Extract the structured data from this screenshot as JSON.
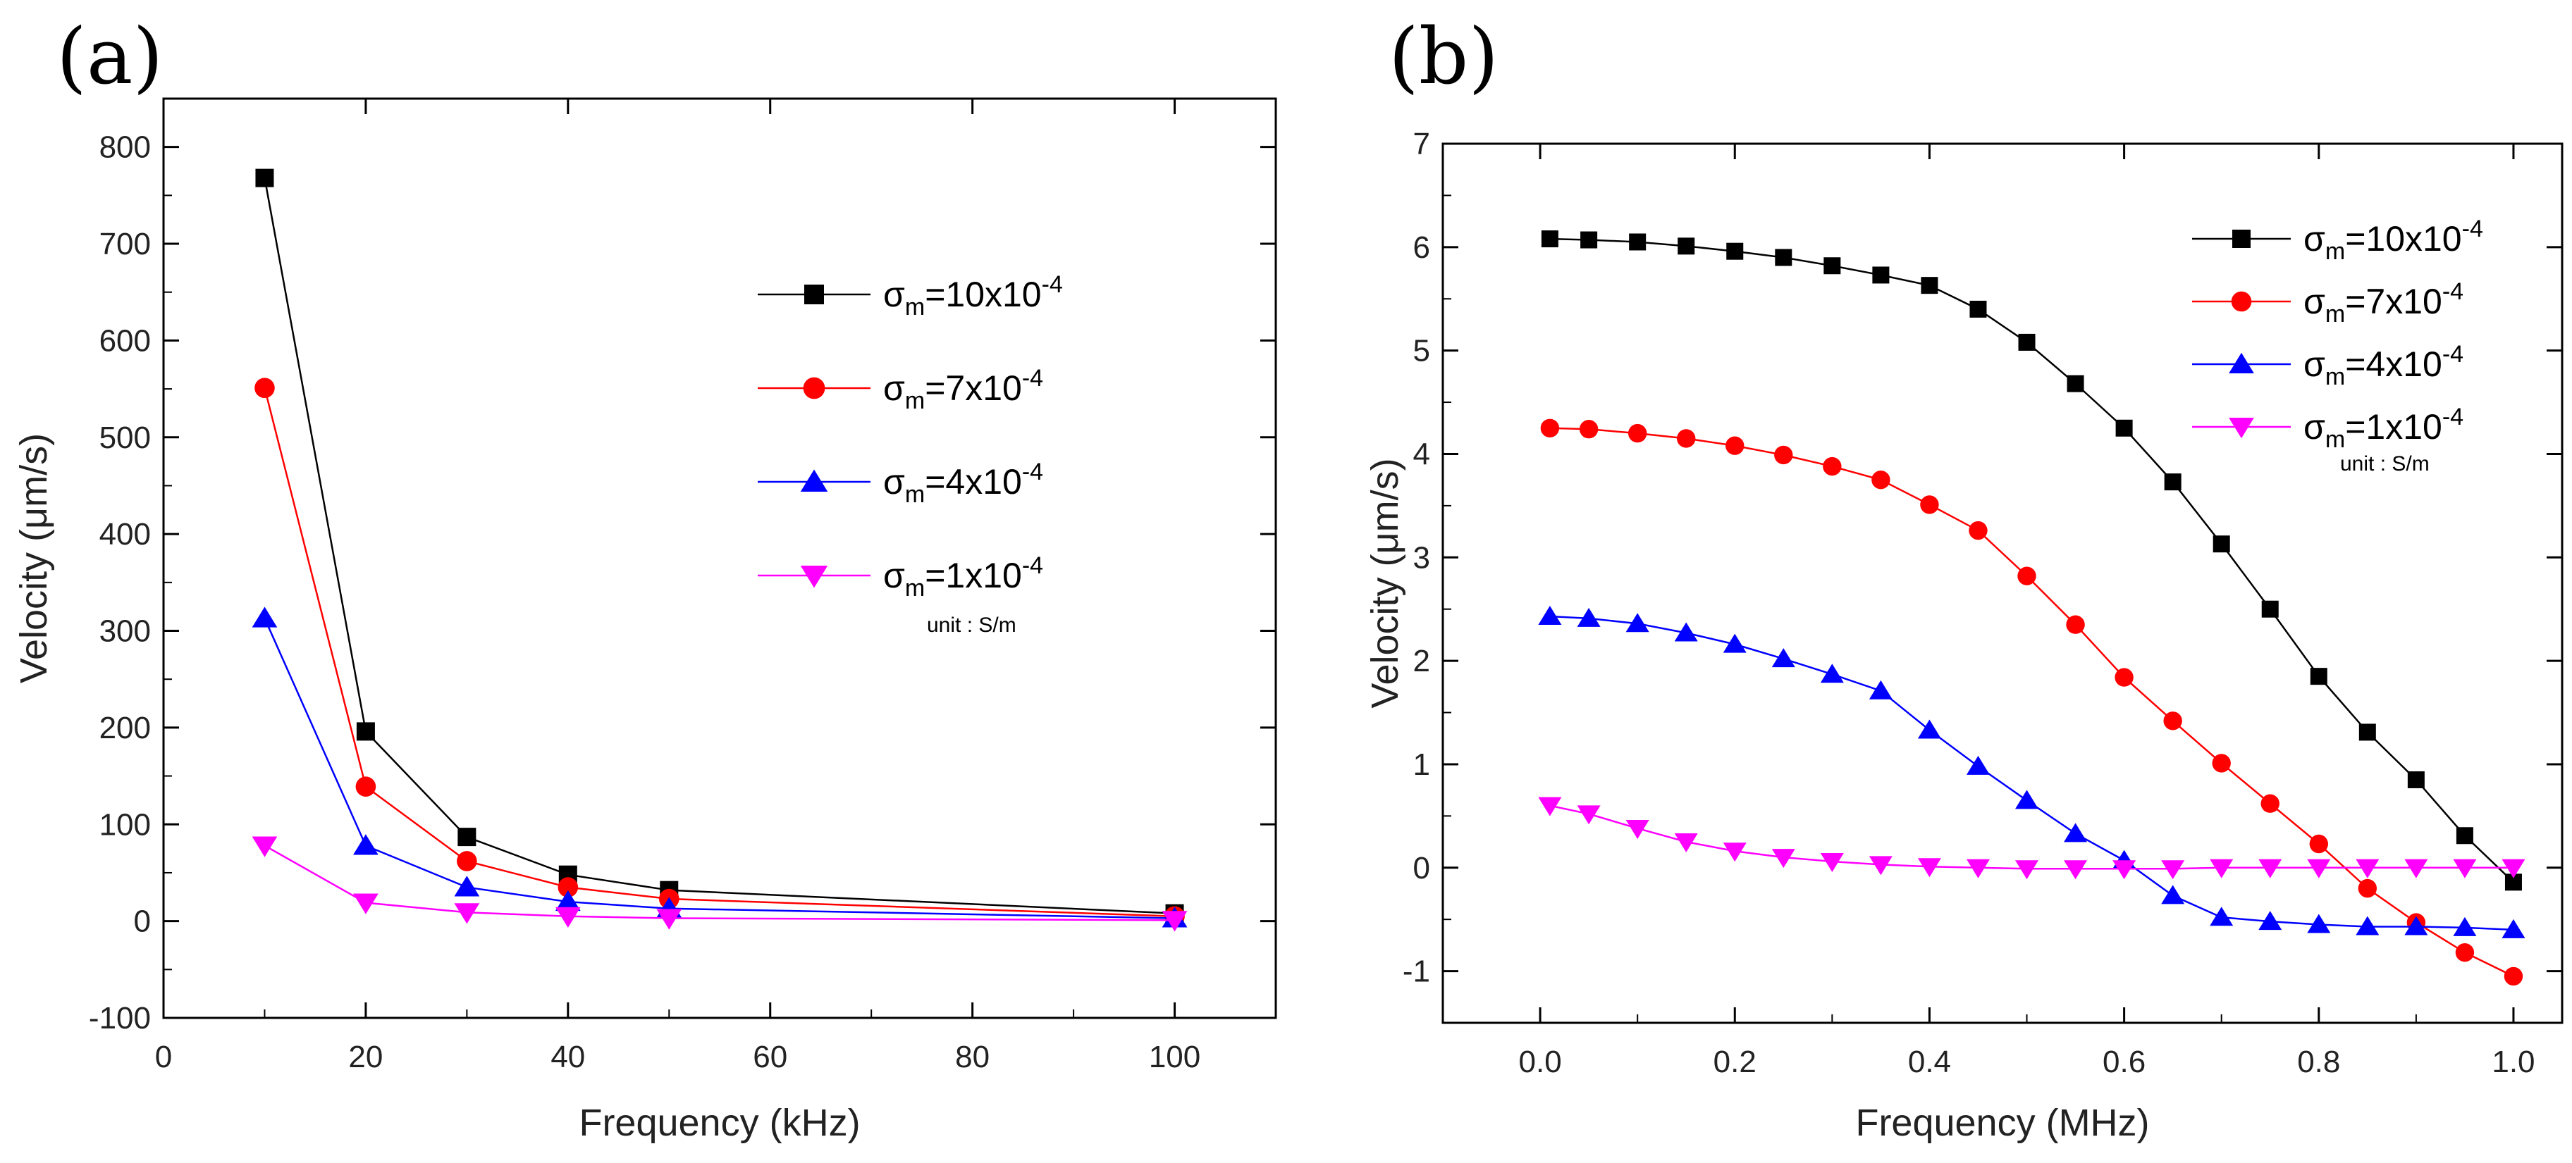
{
  "chart_data": [
    {
      "type": "line",
      "panel_label": "(a)",
      "xlabel": "Frequency (kHz)",
      "ylabel": "Velocity (μm/s)",
      "xlim": [
        0,
        110
      ],
      "ylim": [
        -100,
        850
      ],
      "xticks": [
        0,
        20,
        40,
        60,
        80,
        100
      ],
      "xtick_labels": [
        "0",
        "20",
        "40",
        "60",
        "80",
        "100"
      ],
      "yticks": [
        -100,
        0,
        100,
        200,
        300,
        400,
        500,
        600,
        700,
        800
      ],
      "ytick_labels": [
        "-100",
        "0",
        "100",
        "200",
        "300",
        "400",
        "500",
        "600",
        "700",
        "800"
      ],
      "legend_position": "top-right",
      "unit_note": "unit : S/m",
      "x": [
        10,
        20,
        30,
        40,
        50,
        100
      ],
      "series": [
        {
          "name_prefix": "σ",
          "name_sub": "m",
          "name_mid": "=10x10",
          "name_sup": "-4",
          "color": "#000000",
          "marker": "square",
          "values": [
            768,
            196,
            87,
            48,
            32,
            8
          ]
        },
        {
          "name_prefix": "σ",
          "name_sub": "m",
          "name_mid": "=7x10",
          "name_sup": "-4",
          "color": "#ff0000",
          "marker": "circle",
          "values": [
            551,
            139,
            62,
            35,
            23,
            5
          ]
        },
        {
          "name_prefix": "σ",
          "name_sub": "m",
          "name_mid": "=4x10",
          "name_sup": "-4",
          "color": "#0000ff",
          "marker": "triangle-up",
          "values": [
            313,
            78,
            35,
            20,
            13,
            3
          ]
        },
        {
          "name_prefix": "σ",
          "name_sub": "m",
          "name_mid": "=1x10",
          "name_sup": "-4",
          "color": "#ff00ff",
          "marker": "triangle-down",
          "values": [
            78,
            19,
            9,
            5,
            3,
            1
          ]
        }
      ]
    },
    {
      "type": "line",
      "panel_label": "(b)",
      "xlabel": "Frequency (MHz)",
      "ylabel": "Velocity (μm/s)",
      "xlim": [
        -0.1,
        1.05
      ],
      "ylim": [
        -1.5,
        7
      ],
      "xticks": [
        0.0,
        0.2,
        0.4,
        0.6,
        0.8,
        1.0
      ],
      "xtick_labels": [
        "0.0",
        "0.2",
        "0.4",
        "0.6",
        "0.8",
        "1.0"
      ],
      "yticks": [
        -1,
        0,
        1,
        2,
        3,
        4,
        5,
        6,
        7
      ],
      "ytick_labels": [
        "-1",
        "0",
        "1",
        "2",
        "3",
        "4",
        "5",
        "6",
        "7"
      ],
      "legend_position": "top-right",
      "unit_note": "unit : S/m",
      "x": [
        0.01,
        0.05,
        0.1,
        0.15,
        0.2,
        0.25,
        0.3,
        0.35,
        0.4,
        0.45,
        0.5,
        0.55,
        0.6,
        0.65,
        0.7,
        0.75,
        0.8,
        0.85,
        0.9,
        0.95,
        1.0
      ],
      "series": [
        {
          "name_prefix": "σ",
          "name_sub": "m",
          "name_mid": "=10x10",
          "name_sup": "-4",
          "color": "#000000",
          "marker": "square",
          "values": [
            6.08,
            6.07,
            6.05,
            6.01,
            5.96,
            5.9,
            5.82,
            5.73,
            5.63,
            5.4,
            5.08,
            4.68,
            4.25,
            3.73,
            3.13,
            2.5,
            1.85,
            1.31,
            0.85,
            0.31,
            -0.14
          ]
        },
        {
          "name_prefix": "σ",
          "name_sub": "m",
          "name_mid": "=7x10",
          "name_sup": "-4",
          "color": "#ff0000",
          "marker": "circle",
          "values": [
            4.25,
            4.24,
            4.2,
            4.15,
            4.08,
            3.99,
            3.88,
            3.75,
            3.51,
            3.26,
            2.82,
            2.35,
            1.84,
            1.42,
            1.01,
            0.62,
            0.23,
            -0.2,
            -0.53,
            -0.82,
            -1.05
          ]
        },
        {
          "name_prefix": "σ",
          "name_sub": "m",
          "name_mid": "=4x10",
          "name_sup": "-4",
          "color": "#0000ff",
          "marker": "triangle-up",
          "values": [
            2.43,
            2.41,
            2.36,
            2.27,
            2.16,
            2.02,
            1.87,
            1.71,
            1.33,
            0.98,
            0.65,
            0.33,
            0.07,
            -0.27,
            -0.48,
            -0.52,
            -0.55,
            -0.57,
            -0.57,
            -0.58,
            -0.6
          ]
        },
        {
          "name_prefix": "σ",
          "name_sub": "m",
          "name_mid": "=1x10",
          "name_sup": "-4",
          "color": "#ff00ff",
          "marker": "triangle-down",
          "values": [
            0.6,
            0.52,
            0.38,
            0.25,
            0.16,
            0.1,
            0.06,
            0.03,
            0.01,
            0.0,
            -0.01,
            -0.01,
            -0.01,
            -0.01,
            0.0,
            0.0,
            0.0,
            0.0,
            0.0,
            0.0,
            0.0
          ]
        }
      ]
    }
  ]
}
